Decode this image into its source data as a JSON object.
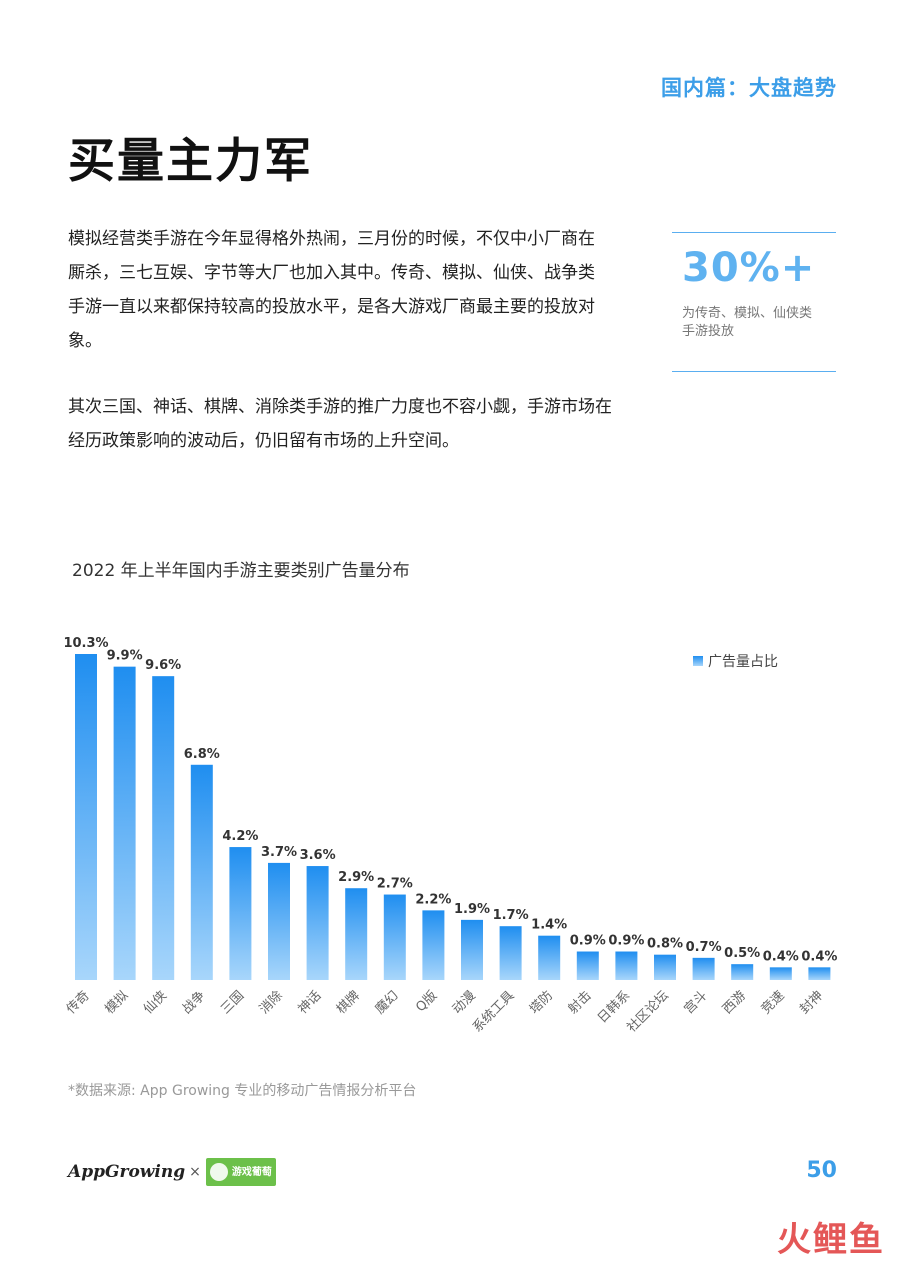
{
  "header": {
    "section_tag": "国内篇：大盘趋势"
  },
  "title": "买量主力军",
  "paragraphs": [
    "模拟经营类手游在今年显得格外热闹，三月份的时候，不仅中小厂商在厮杀，三七互娱、字节等大厂也加入其中。传奇、模拟、仙侠、战争类手游一直以来都保持较高的投放水平，是各大游戏厂商最主要的投放对象。",
    "其次三国、神话、棋牌、消除类手游的推广力度也不容小觑，手游市场在经历政策影响的波动后，仍旧留有市场的上升空间。"
  ],
  "stat": {
    "value": "30%+",
    "description": "为传奇、模拟、仙侠类手游投放"
  },
  "chart_data": {
    "type": "bar",
    "title": "2022 年上半年国内手游主要类别广告量分布",
    "categories": [
      "传奇",
      "模拟",
      "仙侠",
      "战争",
      "三国",
      "消除",
      "神话",
      "棋牌",
      "魔幻",
      "Q版",
      "动漫",
      "系统工具",
      "塔防",
      "射击",
      "日韩系",
      "社区论坛",
      "宫斗",
      "西游",
      "竞速",
      "封神"
    ],
    "series": [
      {
        "name": "广告量占比",
        "values": [
          10.3,
          9.9,
          9.6,
          6.8,
          4.2,
          3.7,
          3.6,
          2.9,
          2.7,
          2.2,
          1.9,
          1.7,
          1.4,
          0.9,
          0.9,
          0.8,
          0.7,
          0.5,
          0.4,
          0.4
        ]
      }
    ],
    "value_labels": [
      "10.3%",
      "9.9%",
      "9.6%",
      "6.8%",
      "4.2%",
      "3.7%",
      "3.6%",
      "2.9%",
      "2.7%",
      "2.2%",
      "1.9%",
      "1.7%",
      "1.4%",
      "0.9%",
      "0.9%",
      "0.8%",
      "0.7%",
      "0.5%",
      "0.4%",
      "0.4%"
    ],
    "ylim": [
      0,
      10.3
    ],
    "legend_position": "top-right",
    "grid": false,
    "colors": {
      "bar_top": "#1f8ef0",
      "bar_bottom": "#a8d6fb"
    }
  },
  "source_note": "*数据来源: App Growing 专业的移动广告情报分析平台",
  "footer": {
    "logo_primary": "AppGrowing",
    "logo_separator": "×",
    "logo_partner": "游戏葡萄",
    "page_number": "50",
    "watermark": "火鲤鱼"
  }
}
